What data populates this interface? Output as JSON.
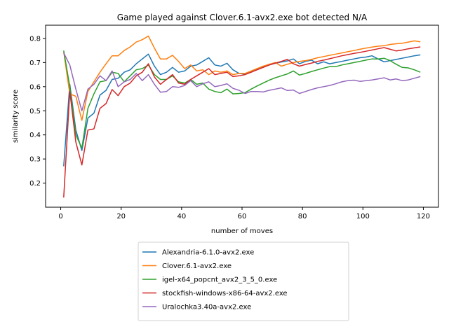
{
  "chart_data": {
    "type": "line",
    "title": "Game played against Clover.6.1-avx2.exe bot detected N/A",
    "xlabel": "number of moves",
    "ylabel": "similarity score",
    "xlim": [
      -5,
      125
    ],
    "ylim": [
      0.1,
      0.855
    ],
    "xticks": [
      0,
      20,
      40,
      60,
      80,
      100,
      120
    ],
    "yticks": [
      0.2,
      0.3,
      0.4,
      0.5,
      0.6,
      0.7,
      0.8
    ],
    "grid": false,
    "legend_position": "below",
    "series": [
      {
        "name": "Alexandria-6.1.0-avx2.exe",
        "color": "#1f77b4",
        "x": [
          1,
          3,
          5,
          7,
          9,
          11,
          13,
          15,
          17,
          19,
          21,
          23,
          25,
          27,
          29,
          31,
          33,
          35,
          37,
          39,
          41,
          43,
          45,
          47,
          49,
          51,
          53,
          55,
          57,
          59,
          61,
          63,
          65,
          67,
          69,
          71,
          73,
          75,
          77,
          79,
          81,
          83,
          85,
          87,
          89,
          91,
          93,
          95,
          97,
          99,
          101,
          103,
          105,
          107,
          109,
          111,
          113,
          115,
          117,
          119
        ],
        "values": [
          0.27,
          0.61,
          0.42,
          0.335,
          0.47,
          0.49,
          0.565,
          0.585,
          0.63,
          0.635,
          0.66,
          0.67,
          0.695,
          0.715,
          0.735,
          0.685,
          0.65,
          0.66,
          0.68,
          0.66,
          0.665,
          0.685,
          0.69,
          0.705,
          0.72,
          0.69,
          0.685,
          0.697,
          0.67,
          0.655,
          0.652,
          0.66,
          0.672,
          0.682,
          0.69,
          0.697,
          0.702,
          0.707,
          0.715,
          0.695,
          0.705,
          0.71,
          0.695,
          0.703,
          0.695,
          0.7,
          0.705,
          0.71,
          0.715,
          0.72,
          0.723,
          0.728,
          0.715,
          0.703,
          0.708,
          0.713,
          0.718,
          0.723,
          0.728,
          0.732
        ]
      },
      {
        "name": "Clover.6.1-avx2.exe",
        "color": "#ff7f0e",
        "x": [
          1,
          3,
          5,
          7,
          9,
          11,
          13,
          15,
          17,
          19,
          21,
          23,
          25,
          27,
          29,
          31,
          33,
          35,
          37,
          39,
          41,
          43,
          45,
          47,
          49,
          51,
          53,
          55,
          57,
          59,
          61,
          63,
          65,
          67,
          69,
          71,
          73,
          75,
          77,
          79,
          81,
          83,
          85,
          87,
          89,
          91,
          93,
          95,
          97,
          99,
          101,
          103,
          105,
          107,
          109,
          111,
          113,
          115,
          117,
          119
        ],
        "values": [
          0.745,
          0.57,
          0.56,
          0.46,
          0.58,
          0.62,
          0.66,
          0.695,
          0.728,
          0.728,
          0.75,
          0.765,
          0.785,
          0.795,
          0.81,
          0.76,
          0.715,
          0.715,
          0.73,
          0.705,
          0.675,
          0.69,
          0.665,
          0.67,
          0.65,
          0.665,
          0.66,
          0.665,
          0.65,
          0.655,
          0.655,
          0.665,
          0.675,
          0.685,
          0.693,
          0.7,
          0.685,
          0.693,
          0.7,
          0.705,
          0.708,
          0.713,
          0.72,
          0.725,
          0.73,
          0.735,
          0.74,
          0.745,
          0.75,
          0.755,
          0.76,
          0.764,
          0.768,
          0.77,
          0.775,
          0.778,
          0.78,
          0.785,
          0.79,
          0.786
        ]
      },
      {
        "name": "igel-x64_popcnt_avx2_3_5_0.exe",
        "color": "#2ca02c",
        "x": [
          1,
          3,
          5,
          7,
          9,
          11,
          13,
          15,
          17,
          19,
          21,
          23,
          25,
          27,
          29,
          31,
          33,
          35,
          37,
          39,
          41,
          43,
          45,
          47,
          49,
          51,
          53,
          55,
          57,
          59,
          61,
          63,
          65,
          67,
          69,
          71,
          73,
          75,
          77,
          79,
          81,
          83,
          85,
          87,
          89,
          91,
          93,
          95,
          97,
          99,
          101,
          103,
          105,
          107,
          109,
          111,
          113,
          115,
          117,
          119
        ],
        "values": [
          0.75,
          0.6,
          0.4,
          0.345,
          0.51,
          0.57,
          0.62,
          0.625,
          0.66,
          0.655,
          0.62,
          0.645,
          0.67,
          0.675,
          0.69,
          0.65,
          0.63,
          0.63,
          0.645,
          0.62,
          0.615,
          0.63,
          0.61,
          0.615,
          0.59,
          0.58,
          0.575,
          0.59,
          0.57,
          0.572,
          0.575,
          0.59,
          0.603,
          0.615,
          0.627,
          0.637,
          0.645,
          0.653,
          0.665,
          0.648,
          0.655,
          0.663,
          0.67,
          0.677,
          0.683,
          0.683,
          0.69,
          0.695,
          0.7,
          0.705,
          0.71,
          0.715,
          0.715,
          0.718,
          0.708,
          0.693,
          0.68,
          0.678,
          0.67,
          0.66
        ]
      },
      {
        "name": "stockfish-windows-x86-64-avx2.exe",
        "color": "#d62728",
        "x": [
          1,
          3,
          5,
          7,
          9,
          11,
          13,
          15,
          17,
          19,
          21,
          23,
          25,
          27,
          29,
          31,
          33,
          35,
          37,
          39,
          41,
          43,
          45,
          47,
          49,
          51,
          53,
          55,
          57,
          59,
          61,
          63,
          65,
          67,
          69,
          71,
          73,
          75,
          77,
          79,
          81,
          83,
          85,
          87,
          89,
          91,
          93,
          95,
          97,
          99,
          101,
          103,
          105,
          107,
          109,
          111,
          113,
          115,
          117,
          119
        ],
        "values": [
          0.14,
          0.58,
          0.37,
          0.275,
          0.42,
          0.425,
          0.51,
          0.53,
          0.588,
          0.563,
          0.6,
          0.615,
          0.645,
          0.66,
          0.695,
          0.64,
          0.61,
          0.63,
          0.65,
          0.615,
          0.61,
          0.63,
          0.645,
          0.66,
          0.675,
          0.65,
          0.655,
          0.66,
          0.642,
          0.645,
          0.65,
          0.66,
          0.67,
          0.68,
          0.69,
          0.698,
          0.705,
          0.713,
          0.695,
          0.685,
          0.692,
          0.698,
          0.705,
          0.71,
          0.716,
          0.722,
          0.728,
          0.733,
          0.738,
          0.742,
          0.747,
          0.752,
          0.757,
          0.762,
          0.755,
          0.748,
          0.752,
          0.757,
          0.761,
          0.765
        ]
      },
      {
        "name": "Uralochka3.40a-avx2.exe",
        "color": "#9467bd",
        "x": [
          1,
          3,
          5,
          7,
          9,
          11,
          13,
          15,
          17,
          19,
          21,
          23,
          25,
          27,
          29,
          31,
          33,
          35,
          37,
          39,
          41,
          43,
          45,
          47,
          49,
          51,
          53,
          55,
          57,
          59,
          61,
          63,
          65,
          67,
          69,
          71,
          73,
          75,
          77,
          79,
          81,
          83,
          85,
          87,
          89,
          91,
          93,
          95,
          97,
          99,
          101,
          103,
          105,
          107,
          109,
          111,
          113,
          115,
          117,
          119
        ],
        "values": [
          0.74,
          0.69,
          0.59,
          0.5,
          0.59,
          0.61,
          0.645,
          0.625,
          0.665,
          0.6,
          0.62,
          0.63,
          0.655,
          0.625,
          0.65,
          0.61,
          0.577,
          0.58,
          0.6,
          0.597,
          0.605,
          0.625,
          0.6,
          0.612,
          0.62,
          0.6,
          0.605,
          0.612,
          0.593,
          0.585,
          0.572,
          0.58,
          0.58,
          0.578,
          0.585,
          0.59,
          0.595,
          0.584,
          0.586,
          0.572,
          0.58,
          0.588,
          0.595,
          0.6,
          0.605,
          0.612,
          0.62,
          0.625,
          0.627,
          0.622,
          0.625,
          0.628,
          0.632,
          0.637,
          0.628,
          0.632,
          0.625,
          0.628,
          0.635,
          0.642
        ]
      }
    ]
  }
}
